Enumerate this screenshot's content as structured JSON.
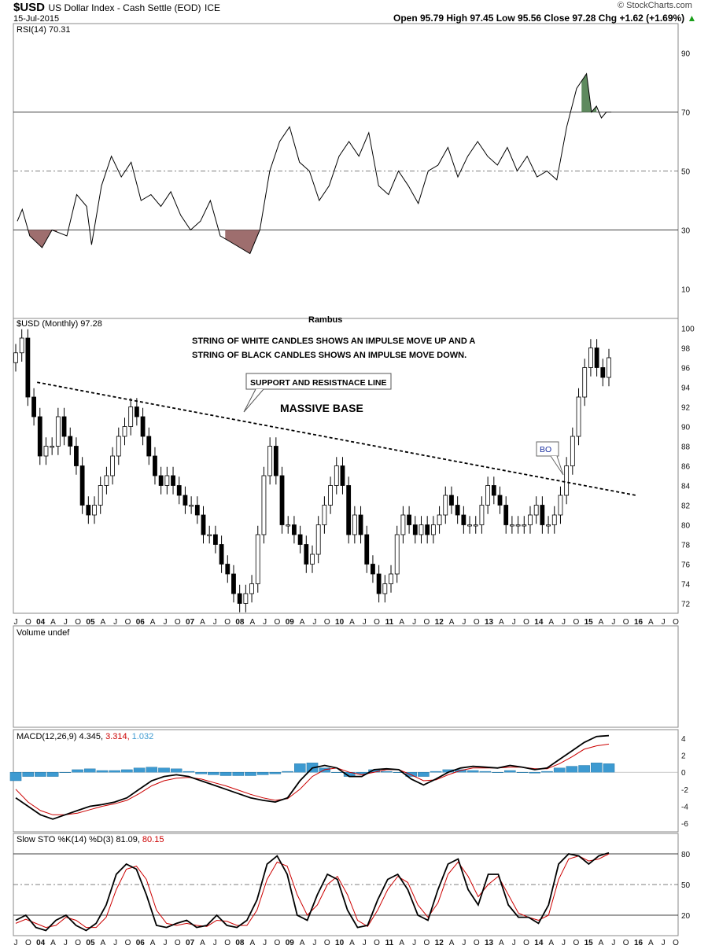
{
  "header": {
    "symbol": "$USD",
    "name": "US Dollar Index - Cash Settle (EOD)",
    "exchange": "ICE",
    "date": "15-Jul-2015",
    "quote": "Open 95.79  High 97.45  Low 95.56  Close 97.28  Chg +1.62 (+1.69%)",
    "quote_arrow": "▲",
    "watermark": "© StockCharts.com"
  },
  "colors": {
    "candle_up": "#ffffff",
    "candle_down": "#000000",
    "rsi_overbought_fill": "#5e8a5e",
    "rsi_oversold_fill": "#9e6e6e",
    "macd_line": "#000000",
    "signal_line": "#cc0000",
    "histogram": "#3d9ad1",
    "sto_k": "#000000",
    "sto_d": "#cc0000"
  },
  "panels": {
    "rsi_title": "RSI(14) 70.31",
    "price_title": "$USD (Monthly) 97.28",
    "price_top_label": "Rambus",
    "volume_title": "Volume undef",
    "macd_title": "MACD(12,26,9) 4.345, 3.314, 1.032",
    "macd_title_main": "MACD(12,26,9) 4.345,",
    "macd_title_signal": "3.314,",
    "macd_title_hist": "1.032",
    "sto_title_main": "Slow STO %K(14) %D(3) 81.09,",
    "sto_title_d": "80.15"
  },
  "annotations": {
    "impulse_line1": "STRING OF WHITE CANDLES SHOWS AN IMPULSE MOVE UP AND A",
    "impulse_line2": "STRING OF BLACK CANDLES SHOWS AN IMPULSE MOVE DOWN.",
    "support_callout": "SUPPORT AND RESISTNACE LINE",
    "massive_base": "MASSIVE BASE",
    "bo_callout": "BO"
  },
  "chart_data": [
    {
      "type": "line",
      "title": "RSI(14) 70.31",
      "ylim": [
        0,
        100
      ],
      "yticks": [
        10,
        30,
        50,
        70,
        90
      ],
      "reference_lines": [
        30,
        50,
        70
      ],
      "x": [
        2003.5,
        2003.6,
        2003.75,
        2004,
        2004.2,
        2004.5,
        2004.7,
        2004.9,
        2005,
        2005.2,
        2005.4,
        2005.6,
        2005.8,
        2006,
        2006.2,
        2006.4,
        2006.6,
        2006.8,
        2007,
        2007.2,
        2007.4,
        2007.6,
        2007.8,
        2008,
        2008.2,
        2008.4,
        2008.6,
        2008.8,
        2009,
        2009.2,
        2009.4,
        2009.6,
        2009.8,
        2010,
        2010.2,
        2010.4,
        2010.6,
        2010.8,
        2011,
        2011.2,
        2011.4,
        2011.6,
        2011.8,
        2012,
        2012.2,
        2012.4,
        2012.6,
        2012.8,
        2013,
        2013.2,
        2013.4,
        2013.6,
        2013.8,
        2014,
        2014.2,
        2014.4,
        2014.6,
        2014.8,
        2015,
        2015.1,
        2015.2,
        2015.3,
        2015.4,
        2015.5
      ],
      "values": [
        33,
        37,
        28,
        24,
        30,
        28,
        42,
        38,
        25,
        45,
        55,
        48,
        53,
        40,
        42,
        38,
        43,
        35,
        30,
        33,
        40,
        28,
        26,
        24,
        22,
        30,
        50,
        60,
        65,
        53,
        50,
        40,
        45,
        55,
        60,
        55,
        63,
        45,
        42,
        50,
        45,
        39,
        50,
        52,
        58,
        48,
        55,
        60,
        55,
        52,
        58,
        50,
        55,
        48,
        50,
        47,
        65,
        78,
        83,
        70,
        72,
        68,
        70,
        70
      ],
      "oversold_segments": [
        [
          2003.7,
          2004.3
        ],
        [
          2005.1,
          2005.5
        ],
        [
          2007.7,
          2008.6
        ]
      ],
      "overbought_segment": [
        2014.9,
        2015.2
      ]
    },
    {
      "type": "candlestick",
      "title": "$USD (Monthly) 97.28",
      "ylim": [
        71,
        101
      ],
      "yticks": [
        72,
        74,
        76,
        78,
        80,
        82,
        84,
        86,
        88,
        90,
        92,
        94,
        96,
        98,
        100
      ],
      "x_tick_labels": [
        "J",
        "O",
        "04",
        "A",
        "J",
        "O",
        "05",
        "A",
        "J",
        "O",
        "06",
        "A",
        "J",
        "O",
        "07",
        "A",
        "J",
        "O",
        "08",
        "A",
        "J",
        "O",
        "09",
        "A",
        "J",
        "O",
        "10",
        "A",
        "J",
        "O",
        "11",
        "A",
        "J",
        "O",
        "12",
        "A",
        "J",
        "O",
        "13",
        "A",
        "J",
        "O",
        "14",
        "A",
        "J",
        "O",
        "15",
        "A",
        "J",
        "O",
        "16",
        "A",
        "J",
        "O"
      ],
      "closes": [
        97.5,
        99,
        93,
        91,
        87,
        88,
        88,
        91,
        89,
        88,
        86,
        82,
        81,
        82,
        84,
        85,
        87,
        89,
        90,
        92,
        91,
        89,
        87,
        85,
        84,
        85,
        84,
        83,
        82,
        82,
        81,
        79,
        79,
        78,
        76,
        75,
        73,
        72,
        73,
        74,
        79,
        85,
        88,
        85,
        80,
        80,
        79,
        78,
        76,
        77,
        80,
        82,
        84,
        86,
        84,
        79,
        81,
        79,
        76,
        75,
        73,
        74,
        75,
        79,
        81,
        80,
        79,
        80,
        79,
        80,
        81,
        83,
        82,
        81,
        80,
        80,
        80,
        82,
        84,
        83,
        82,
        80,
        80,
        80,
        80,
        81,
        82,
        80,
        80,
        81,
        83,
        86,
        89,
        93,
        96,
        98,
        96,
        95,
        97
      ],
      "support_line": {
        "x": [
          2003.9,
          2016.0
        ],
        "y": [
          94.5,
          83.0
        ]
      }
    },
    {
      "type": "line",
      "title": "MACD(12,26,9) 4.345, 3.314, 1.032",
      "ylim": [
        -7,
        5
      ],
      "yticks": [
        -6,
        -4,
        -2,
        0,
        2,
        4
      ],
      "series": [
        {
          "name": "MACD",
          "values": [
            -3,
            -4,
            -5,
            -5.5,
            -5,
            -4.5,
            -4,
            -3.8,
            -3.5,
            -3,
            -2,
            -1,
            -0.5,
            -0.3,
            -0.5,
            -1,
            -1.5,
            -2,
            -2.5,
            -3,
            -3.3,
            -3.5,
            -3,
            -1,
            0.5,
            0.8,
            0.5,
            -0.5,
            -0.5,
            0.3,
            0.4,
            0.3,
            -0.8,
            -1.5,
            -0.8,
            0,
            0.5,
            0.7,
            0.6,
            0.5,
            0.8,
            0.6,
            0.3,
            0.5,
            1.5,
            2.5,
            3.5,
            4.2,
            4.3
          ]
        },
        {
          "name": "Signal",
          "values": [
            -2,
            -3.5,
            -4.5,
            -5,
            -5,
            -4.8,
            -4.4,
            -4,
            -3.7,
            -3.3,
            -2.5,
            -1.6,
            -1,
            -0.7,
            -0.6,
            -0.8,
            -1.2,
            -1.6,
            -2.1,
            -2.6,
            -3,
            -3.3,
            -3.1,
            -2,
            -0.5,
            0.3,
            0.5,
            0,
            -0.3,
            0,
            0.3,
            0.3,
            -0.3,
            -1,
            -0.9,
            -0.3,
            0.2,
            0.5,
            0.5,
            0.5,
            0.6,
            0.6,
            0.4,
            0.4,
            1,
            1.8,
            2.7,
            3.1,
            3.3
          ]
        }
      ],
      "histogram": [
        -1,
        -0.5,
        -0.5,
        -0.5,
        0,
        0.3,
        0.4,
        0.2,
        0.2,
        0.3,
        0.5,
        0.6,
        0.5,
        0.4,
        0.1,
        -0.2,
        -0.3,
        -0.4,
        -0.4,
        -0.4,
        -0.3,
        -0.2,
        0.1,
        1,
        1.1,
        0.5,
        0,
        -0.5,
        -0.2,
        0.3,
        0.1,
        0,
        -0.5,
        -0.5,
        0.1,
        0.3,
        0.3,
        0.2,
        0.1,
        0,
        0.2,
        0,
        -0.1,
        0.1,
        0.5,
        0.7,
        0.8,
        1.1,
        1.0
      ]
    },
    {
      "type": "line",
      "title": "Slow STO %K(14) %D(3) 81.09, 80.15",
      "ylim": [
        0,
        100
      ],
      "yticks": [
        20,
        50,
        80
      ],
      "reference_lines": [
        20,
        50,
        80
      ],
      "series": [
        {
          "name": "%K",
          "values": [
            15,
            20,
            8,
            5,
            15,
            20,
            10,
            5,
            12,
            30,
            60,
            70,
            65,
            40,
            10,
            8,
            12,
            15,
            8,
            10,
            20,
            10,
            8,
            15,
            35,
            70,
            78,
            60,
            20,
            15,
            40,
            60,
            55,
            25,
            8,
            10,
            35,
            55,
            60,
            45,
            20,
            15,
            45,
            70,
            75,
            45,
            30,
            60,
            60,
            30,
            18,
            18,
            12,
            30,
            70,
            80,
            78,
            70,
            78,
            81
          ]
        },
        {
          "name": "%D",
          "values": [
            12,
            16,
            12,
            8,
            10,
            18,
            15,
            8,
            8,
            18,
            45,
            65,
            68,
            55,
            25,
            12,
            10,
            12,
            10,
            9,
            15,
            14,
            10,
            10,
            25,
            55,
            72,
            68,
            40,
            20,
            30,
            50,
            58,
            40,
            15,
            9,
            25,
            45,
            58,
            52,
            30,
            18,
            32,
            60,
            72,
            58,
            38,
            50,
            58,
            40,
            22,
            18,
            15,
            20,
            55,
            75,
            78,
            73,
            75,
            80
          ]
        }
      ]
    }
  ]
}
